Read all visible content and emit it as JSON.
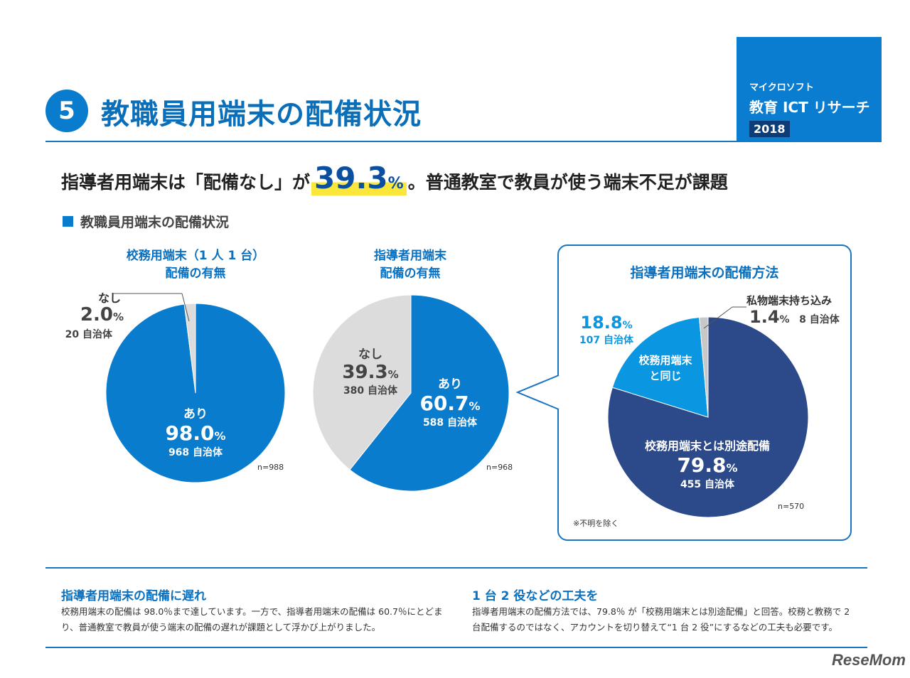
{
  "header": {
    "section_number": "5",
    "title": "教職員用端末の配備状況",
    "brand_small": "マイクロソフト",
    "brand_main": "教育 ICT リサーチ",
    "brand_year": "2018"
  },
  "headline": {
    "prefix": "指導者用端末は「配備なし」が",
    "value": "39.3",
    "unit": "%",
    "suffix": "。普通教室で教員が使う端末不足が課題"
  },
  "subhead": "教職員用端末の配備状況",
  "chart_data": [
    {
      "type": "pie",
      "title": [
        "校務用端末（1 人 1 台）",
        "配備の有無"
      ],
      "n": "n=988",
      "slices": [
        {
          "label": "あり",
          "value": 98.0,
          "pct": "98.0",
          "count": "968 自治体",
          "color": "#0a7ccd"
        },
        {
          "label": "なし",
          "value": 2.0,
          "pct": "2.0",
          "count": "20 自治体",
          "color": "#dcdcdc"
        }
      ]
    },
    {
      "type": "pie",
      "title": [
        "指導者用端末",
        "配備の有無"
      ],
      "n": "n=968",
      "slices": [
        {
          "label": "あり",
          "value": 60.7,
          "pct": "60.7",
          "count": "588 自治体",
          "color": "#0a7ccd"
        },
        {
          "label": "なし",
          "value": 39.3,
          "pct": "39.3",
          "count": "380 自治体",
          "color": "#dcdcdc"
        }
      ]
    },
    {
      "type": "pie",
      "title": [
        "指導者用端末の配備方法"
      ],
      "n": "n=570",
      "note": "※不明を除く",
      "slices": [
        {
          "label": "校務用端末とは別途配備",
          "value": 79.8,
          "pct": "79.8",
          "count": "455 自治体",
          "color": "#2c4a8a"
        },
        {
          "label": "校務用端末と同じ",
          "value": 18.8,
          "pct": "18.8",
          "count": "107 自治体",
          "color": "#0a96e0"
        },
        {
          "label": "私物端末持ち込み",
          "value": 1.4,
          "pct": "1.4",
          "count": "8 自治体",
          "color": "#c8c8c8"
        }
      ]
    }
  ],
  "pct_sign": "%",
  "bottom": {
    "left_title": "指導者用端末の配備に遅れ",
    "left_text": "校務用端末の配備は 98.0％まで達しています。一方で、指導者用端末の配備は 60.7％にとどまり、普通教室で教員が使う端末の配備の遅れが課題として浮かび上がりました。",
    "right_title": "1 台 2 役などの工夫を",
    "right_text": "指導者用端末の配備方法では、79.8％ が「校務用端末とは別途配備」と回答。校務と教務で 2 台配備するのではなく、アカウントを切り替えて“1 台 2 役”にするなどの工夫も必要です。"
  },
  "logo": "ReseMom"
}
